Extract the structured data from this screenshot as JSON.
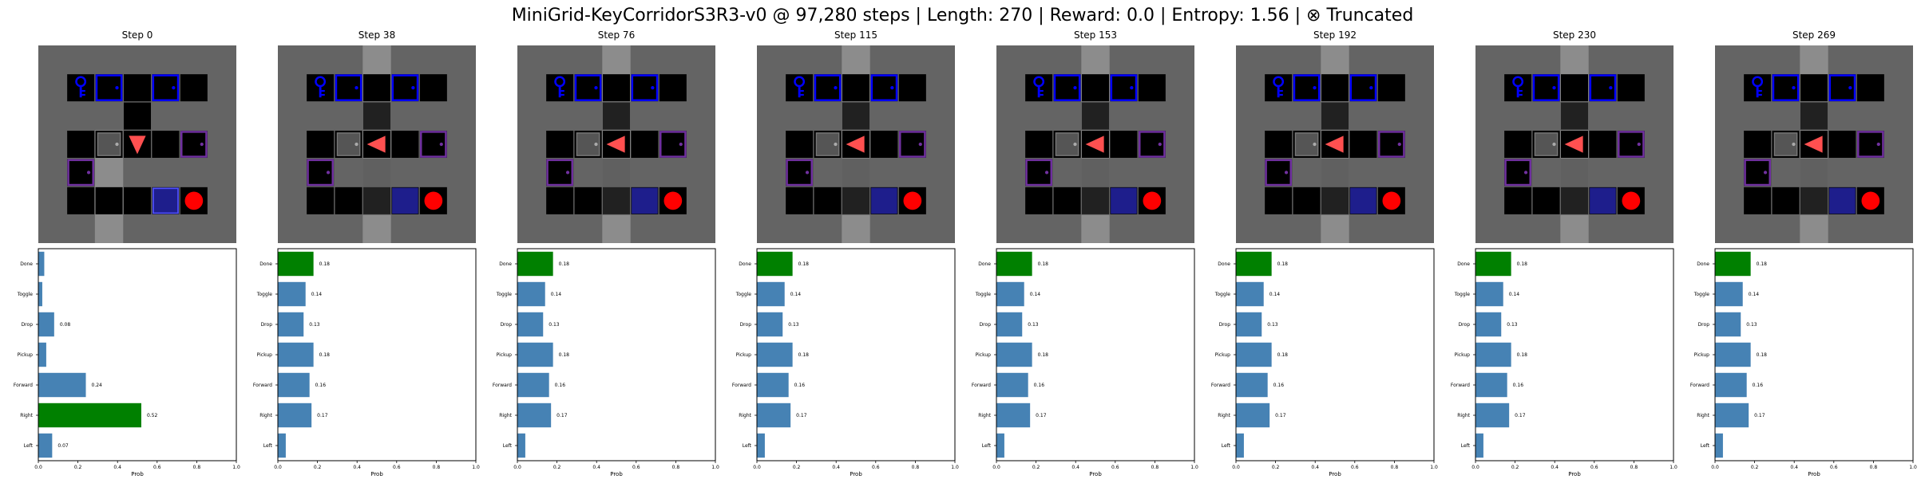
{
  "suptitle": "MiniGrid-KeyCorridorS3R3-v0 @ 97,280 steps | Length: 270 | Reward: 0.0 | Entropy: 1.56 | ⊗ Truncated",
  "colors": {
    "wall": "#646464",
    "corridor": "#8c8c8c",
    "floor": "#000000",
    "agent": "#ff5050",
    "ball": "#ff0000",
    "key_door": "#0000ff",
    "purple_door": "#7030a0",
    "bar_default": "#4682b4",
    "bar_selected": "#008000"
  },
  "panels": [
    {
      "title": "Step 0",
      "agent_dir": "down",
      "door_state": "closed",
      "chart_data": {
        "type": "bar",
        "orientation": "horizontal",
        "categories": [
          "Left",
          "Right",
          "Forward",
          "Pickup",
          "Drop",
          "Toggle",
          "Done"
        ],
        "values": [
          0.07,
          0.52,
          0.24,
          0.04,
          0.08,
          0.02,
          0.03
        ],
        "value_labels": [
          "0.07",
          "0.52",
          "0.24",
          "",
          "0.08",
          "",
          ""
        ],
        "selected": "Right",
        "xlabel": "Prob",
        "xlim": [
          0,
          1
        ],
        "xticks": [
          "0.0",
          "0.2",
          "0.4",
          "0.6",
          "0.8",
          "1.0"
        ]
      }
    },
    {
      "title": "Step 38",
      "agent_dir": "left",
      "door_state": "open",
      "chart_data": {
        "type": "bar",
        "orientation": "horizontal",
        "categories": [
          "Left",
          "Right",
          "Forward",
          "Pickup",
          "Drop",
          "Toggle",
          "Done"
        ],
        "values": [
          0.04,
          0.17,
          0.16,
          0.18,
          0.13,
          0.14,
          0.18
        ],
        "value_labels": [
          "",
          "0.17",
          "0.16",
          "0.18",
          "0.13",
          "0.14",
          "0.18"
        ],
        "selected": "Done",
        "xlabel": "Prob",
        "xlim": [
          0,
          1
        ],
        "xticks": [
          "0.0",
          "0.2",
          "0.4",
          "0.6",
          "0.8",
          "1.0"
        ]
      }
    },
    {
      "title": "Step 76",
      "agent_dir": "left",
      "door_state": "open",
      "chart_data": {
        "type": "bar",
        "orientation": "horizontal",
        "categories": [
          "Left",
          "Right",
          "Forward",
          "Pickup",
          "Drop",
          "Toggle",
          "Done"
        ],
        "values": [
          0.04,
          0.17,
          0.16,
          0.18,
          0.13,
          0.14,
          0.18
        ],
        "value_labels": [
          "",
          "0.17",
          "0.16",
          "0.18",
          "0.13",
          "0.14",
          "0.18"
        ],
        "selected": "Done",
        "xlabel": "Prob",
        "xlim": [
          0,
          1
        ],
        "xticks": [
          "0.0",
          "0.2",
          "0.4",
          "0.6",
          "0.8",
          "1.0"
        ]
      }
    },
    {
      "title": "Step 115",
      "agent_dir": "left",
      "door_state": "open",
      "chart_data": {
        "type": "bar",
        "orientation": "horizontal",
        "categories": [
          "Left",
          "Right",
          "Forward",
          "Pickup",
          "Drop",
          "Toggle",
          "Done"
        ],
        "values": [
          0.04,
          0.17,
          0.16,
          0.18,
          0.13,
          0.14,
          0.18
        ],
        "value_labels": [
          "",
          "0.17",
          "0.16",
          "0.18",
          "0.13",
          "0.14",
          "0.18"
        ],
        "selected": "Done",
        "xlabel": "Prob",
        "xlim": [
          0,
          1
        ],
        "xticks": [
          "0.0",
          "0.2",
          "0.4",
          "0.6",
          "0.8",
          "1.0"
        ]
      }
    },
    {
      "title": "Step 153",
      "agent_dir": "left",
      "door_state": "open",
      "chart_data": {
        "type": "bar",
        "orientation": "horizontal",
        "categories": [
          "Left",
          "Right",
          "Forward",
          "Pickup",
          "Drop",
          "Toggle",
          "Done"
        ],
        "values": [
          0.04,
          0.17,
          0.16,
          0.18,
          0.13,
          0.14,
          0.18
        ],
        "value_labels": [
          "",
          "0.17",
          "0.16",
          "0.18",
          "0.13",
          "0.14",
          "0.18"
        ],
        "selected": "Done",
        "xlabel": "Prob",
        "xlim": [
          0,
          1
        ],
        "xticks": [
          "0.0",
          "0.2",
          "0.4",
          "0.6",
          "0.8",
          "1.0"
        ]
      }
    },
    {
      "title": "Step 192",
      "agent_dir": "left",
      "door_state": "open",
      "chart_data": {
        "type": "bar",
        "orientation": "horizontal",
        "categories": [
          "Left",
          "Right",
          "Forward",
          "Pickup",
          "Drop",
          "Toggle",
          "Done"
        ],
        "values": [
          0.04,
          0.17,
          0.16,
          0.18,
          0.13,
          0.14,
          0.18
        ],
        "value_labels": [
          "",
          "0.17",
          "0.16",
          "0.18",
          "0.13",
          "0.14",
          "0.18"
        ],
        "selected": "Done",
        "xlabel": "Prob",
        "xlim": [
          0,
          1
        ],
        "xticks": [
          "0.0",
          "0.2",
          "0.4",
          "0.6",
          "0.8",
          "1.0"
        ]
      }
    },
    {
      "title": "Step 230",
      "agent_dir": "left",
      "door_state": "open",
      "chart_data": {
        "type": "bar",
        "orientation": "horizontal",
        "categories": [
          "Left",
          "Right",
          "Forward",
          "Pickup",
          "Drop",
          "Toggle",
          "Done"
        ],
        "values": [
          0.04,
          0.17,
          0.16,
          0.18,
          0.13,
          0.14,
          0.18
        ],
        "value_labels": [
          "",
          "0.17",
          "0.16",
          "0.18",
          "0.13",
          "0.14",
          "0.18"
        ],
        "selected": "Done",
        "xlabel": "Prob",
        "xlim": [
          0,
          1
        ],
        "xticks": [
          "0.0",
          "0.2",
          "0.4",
          "0.6",
          "0.8",
          "1.0"
        ]
      }
    },
    {
      "title": "Step 269",
      "agent_dir": "left",
      "door_state": "open",
      "chart_data": {
        "type": "bar",
        "orientation": "horizontal",
        "categories": [
          "Left",
          "Right",
          "Forward",
          "Pickup",
          "Drop",
          "Toggle",
          "Done"
        ],
        "values": [
          0.04,
          0.17,
          0.16,
          0.18,
          0.13,
          0.14,
          0.18
        ],
        "value_labels": [
          "",
          "0.17",
          "0.16",
          "0.18",
          "0.13",
          "0.14",
          "0.18"
        ],
        "selected": "Done",
        "xlabel": "Prob",
        "xlim": [
          0,
          1
        ],
        "xticks": [
          "0.0",
          "0.2",
          "0.4",
          "0.6",
          "0.8",
          "1.0"
        ]
      }
    }
  ]
}
